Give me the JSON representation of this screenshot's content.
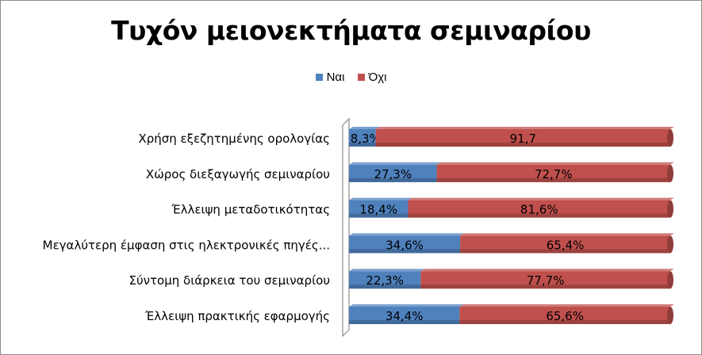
{
  "chart_data": {
    "type": "bar",
    "orientation": "horizontal",
    "stacked": "percent",
    "title": "Τυχόν μειονεκτήματα σεμιναρίου",
    "categories": [
      "Χρήση εξεζητημένης ορολογίας",
      "Χώρος διεξαγωγής σεμιναρίου",
      "Έλλειψη μεταδοτικότητας",
      "Μεγαλύτερη έμφαση στις ηλεκτρονικές πηγές...",
      "Σύντομη διάρκεια του σεμιναρίου",
      "Έλλειψη πρακτικής εφαρμογής"
    ],
    "series": [
      {
        "name": "Ναι",
        "color": "#4f81bd",
        "values": [
          8.3,
          27.3,
          18.4,
          34.6,
          22.3,
          34.4
        ],
        "labels": [
          "8,3%",
          "27,3%",
          "18,4%",
          "34,6%",
          "22,3%",
          "34,4%"
        ]
      },
      {
        "name": "Όχι",
        "color": "#c0504d",
        "values": [
          91.7,
          72.7,
          81.6,
          65.4,
          77.7,
          65.6
        ],
        "labels": [
          "91,7",
          "72,7%",
          "81,6%",
          "65,4%",
          "77,7%",
          "65,6%"
        ]
      }
    ],
    "xlim": [
      0,
      100
    ],
    "legend_position": "top",
    "grid": false
  }
}
